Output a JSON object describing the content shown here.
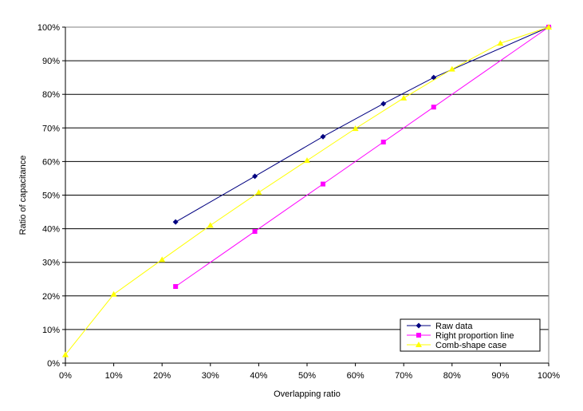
{
  "chart_data": {
    "type": "line",
    "xlabel": "Overlapping ratio",
    "ylabel": "Ratio of capacitance",
    "xlim": [
      0,
      100
    ],
    "ylim": [
      0,
      100
    ],
    "x_ticks": [
      "0%",
      "10%",
      "20%",
      "30%",
      "40%",
      "50%",
      "60%",
      "70%",
      "80%",
      "90%",
      "100%"
    ],
    "y_ticks": [
      "0%",
      "10%",
      "20%",
      "30%",
      "40%",
      "50%",
      "60%",
      "70%",
      "80%",
      "90%",
      "100%"
    ],
    "grid": "horizontal",
    "legend_position": "bottom-right",
    "series": [
      {
        "name": "Raw data",
        "color": "#000080",
        "marker": "diamond",
        "x": [
          22.8,
          39.2,
          53.3,
          65.8,
          76.2,
          100
        ],
        "y": [
          42.0,
          55.6,
          67.4,
          77.2,
          85.0,
          100
        ]
      },
      {
        "name": "Right proportion line",
        "color": "#ff00ff",
        "marker": "square",
        "x": [
          22.8,
          39.2,
          53.3,
          65.8,
          76.2,
          100
        ],
        "y": [
          22.8,
          39.2,
          53.3,
          65.8,
          76.2,
          100
        ]
      },
      {
        "name": "Comb-shape case",
        "color": "#ffff00",
        "marker": "triangle",
        "x": [
          0,
          10,
          20,
          30,
          40,
          50,
          60,
          70,
          80,
          90,
          100
        ],
        "y": [
          2.5,
          20.5,
          30.8,
          41.0,
          50.8,
          60.3,
          69.8,
          78.9,
          87.5,
          95.2,
          100
        ]
      }
    ]
  }
}
